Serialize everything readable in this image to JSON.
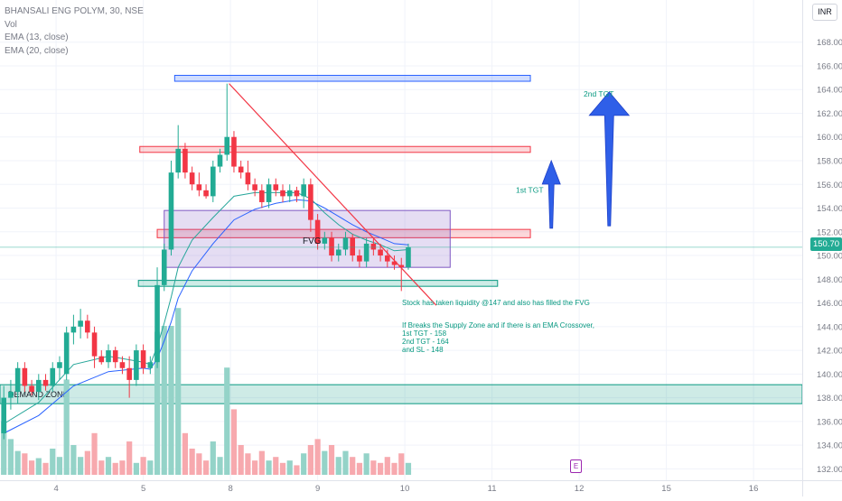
{
  "chart_data": {
    "type": "candlestick",
    "symbol_title": "BHANSALI ENG POLYM, 30, NSE",
    "indicators": [
      "Vol",
      "EMA (13, close)",
      "EMA (20, close)"
    ],
    "currency": "INR",
    "last_price": "150.70",
    "y_ticks": [
      132.0,
      134.0,
      136.0,
      138.0,
      140.0,
      142.0,
      144.0,
      146.0,
      148.0,
      150.0,
      152.0,
      154.0,
      156.0,
      158.0,
      160.0,
      162.0,
      164.0,
      166.0,
      168.0
    ],
    "ylim": [
      131.8,
      169.5
    ],
    "x_ticks": [
      {
        "label": "4",
        "bar": 7.5
      },
      {
        "label": "5",
        "bar": 20
      },
      {
        "label": "8",
        "bar": 32.5
      },
      {
        "label": "9",
        "bar": 45
      },
      {
        "label": "10",
        "bar": 57.5
      },
      {
        "label": "11",
        "bar": 70
      },
      {
        "label": "12",
        "bar": 82.5
      },
      {
        "label": "15",
        "bar": 95
      },
      {
        "label": "16",
        "bar": 107.5
      }
    ],
    "candles": [
      {
        "o": 135.0,
        "h": 139.0,
        "l": 134.5,
        "c": 138.0,
        "v": 0.45
      },
      {
        "o": 138.0,
        "h": 139.5,
        "l": 137.0,
        "c": 138.5,
        "v": 0.3
      },
      {
        "o": 138.5,
        "h": 141.0,
        "l": 137.5,
        "c": 140.5,
        "v": 0.2
      },
      {
        "o": 140.5,
        "h": 141.0,
        "l": 138.5,
        "c": 139.0,
        "v": 0.18
      },
      {
        "o": 139.0,
        "h": 139.5,
        "l": 138.2,
        "c": 138.5,
        "v": 0.12
      },
      {
        "o": 138.5,
        "h": 140.0,
        "l": 137.8,
        "c": 139.5,
        "v": 0.14
      },
      {
        "o": 139.5,
        "h": 140.0,
        "l": 138.6,
        "c": 139.0,
        "v": 0.1
      },
      {
        "o": 139.0,
        "h": 141.0,
        "l": 138.5,
        "c": 140.5,
        "v": 0.22
      },
      {
        "o": 140.5,
        "h": 141.5,
        "l": 139.5,
        "c": 141.0,
        "v": 0.15
      },
      {
        "o": 140.0,
        "h": 144.0,
        "l": 139.5,
        "c": 143.5,
        "v": 0.8
      },
      {
        "o": 143.5,
        "h": 145.0,
        "l": 142.5,
        "c": 144.0,
        "v": 0.25
      },
      {
        "o": 144.0,
        "h": 145.5,
        "l": 143.0,
        "c": 144.5,
        "v": 0.15
      },
      {
        "o": 144.5,
        "h": 145.0,
        "l": 143.0,
        "c": 143.5,
        "v": 0.2
      },
      {
        "o": 143.5,
        "h": 144.0,
        "l": 140.5,
        "c": 141.5,
        "v": 0.35
      },
      {
        "o": 141.5,
        "h": 142.0,
        "l": 140.8,
        "c": 141.0,
        "v": 0.12
      },
      {
        "o": 141.0,
        "h": 142.5,
        "l": 140.5,
        "c": 142.0,
        "v": 0.15
      },
      {
        "o": 142.0,
        "h": 142.3,
        "l": 140.5,
        "c": 141.0,
        "v": 0.1
      },
      {
        "o": 141.0,
        "h": 141.5,
        "l": 140.0,
        "c": 140.5,
        "v": 0.12
      },
      {
        "o": 140.5,
        "h": 141.5,
        "l": 138.0,
        "c": 139.5,
        "v": 0.28
      },
      {
        "o": 139.5,
        "h": 142.5,
        "l": 139.0,
        "c": 142.0,
        "v": 0.1
      },
      {
        "o": 142.0,
        "h": 142.5,
        "l": 140.0,
        "c": 140.5,
        "v": 0.15
      },
      {
        "o": 140.5,
        "h": 141.5,
        "l": 140.0,
        "c": 141.0,
        "v": 0.12
      },
      {
        "o": 141.0,
        "h": 149.0,
        "l": 140.5,
        "c": 147.5,
        "v": 1.2
      },
      {
        "o": 147.5,
        "h": 151.0,
        "l": 147.0,
        "c": 150.5,
        "v": 1.25
      },
      {
        "o": 150.5,
        "h": 158.0,
        "l": 150.0,
        "c": 157.0,
        "v": 1.25
      },
      {
        "o": 157.0,
        "h": 161.0,
        "l": 156.5,
        "c": 159.0,
        "v": 1.4
      },
      {
        "o": 159.0,
        "h": 159.5,
        "l": 156.5,
        "c": 157.0,
        "v": 0.35
      },
      {
        "o": 157.0,
        "h": 157.5,
        "l": 155.5,
        "c": 156.0,
        "v": 0.22
      },
      {
        "o": 156.0,
        "h": 157.0,
        "l": 155.0,
        "c": 155.5,
        "v": 0.18
      },
      {
        "o": 155.5,
        "h": 156.0,
        "l": 154.8,
        "c": 155.0,
        "v": 0.12
      },
      {
        "o": 155.0,
        "h": 158.0,
        "l": 154.5,
        "c": 157.5,
        "v": 0.28
      },
      {
        "o": 157.5,
        "h": 159.0,
        "l": 157.0,
        "c": 158.5,
        "v": 0.15
      },
      {
        "o": 158.5,
        "h": 164.5,
        "l": 158.0,
        "c": 160.0,
        "v": 0.9
      },
      {
        "o": 160.0,
        "h": 160.5,
        "l": 157.0,
        "c": 157.5,
        "v": 0.55
      },
      {
        "o": 157.5,
        "h": 158.0,
        "l": 156.5,
        "c": 157.0,
        "v": 0.25
      },
      {
        "o": 157.0,
        "h": 158.0,
        "l": 155.5,
        "c": 156.0,
        "v": 0.18
      },
      {
        "o": 156.0,
        "h": 156.5,
        "l": 155.0,
        "c": 155.5,
        "v": 0.12
      },
      {
        "o": 155.5,
        "h": 156.0,
        "l": 154.0,
        "c": 154.5,
        "v": 0.2
      },
      {
        "o": 154.5,
        "h": 156.5,
        "l": 154.0,
        "c": 156.0,
        "v": 0.12
      },
      {
        "o": 156.0,
        "h": 156.5,
        "l": 155.0,
        "c": 155.5,
        "v": 0.15
      },
      {
        "o": 155.5,
        "h": 156.0,
        "l": 154.5,
        "c": 155.0,
        "v": 0.1
      },
      {
        "o": 155.0,
        "h": 156.0,
        "l": 154.5,
        "c": 155.5,
        "v": 0.12
      },
      {
        "o": 155.5,
        "h": 155.8,
        "l": 154.5,
        "c": 155.0,
        "v": 0.08
      },
      {
        "o": 155.0,
        "h": 156.5,
        "l": 154.0,
        "c": 156.0,
        "v": 0.18
      },
      {
        "o": 156.0,
        "h": 156.5,
        "l": 152.0,
        "c": 153.0,
        "v": 0.25
      },
      {
        "o": 153.0,
        "h": 153.5,
        "l": 150.5,
        "c": 151.0,
        "v": 0.3
      },
      {
        "o": 151.0,
        "h": 152.0,
        "l": 150.5,
        "c": 151.5,
        "v": 0.2
      },
      {
        "o": 151.5,
        "h": 152.0,
        "l": 149.5,
        "c": 150.0,
        "v": 0.25
      },
      {
        "o": 150.0,
        "h": 151.0,
        "l": 149.5,
        "c": 150.5,
        "v": 0.15
      },
      {
        "o": 150.5,
        "h": 152.0,
        "l": 150.0,
        "c": 151.5,
        "v": 0.2
      },
      {
        "o": 151.5,
        "h": 151.8,
        "l": 149.5,
        "c": 150.0,
        "v": 0.15
      },
      {
        "o": 150.0,
        "h": 150.5,
        "l": 149.0,
        "c": 149.5,
        "v": 0.1
      },
      {
        "o": 149.5,
        "h": 151.5,
        "l": 149.0,
        "c": 151.0,
        "v": 0.18
      },
      {
        "o": 151.0,
        "h": 151.5,
        "l": 150.0,
        "c": 150.5,
        "v": 0.12
      },
      {
        "o": 150.5,
        "h": 151.0,
        "l": 149.5,
        "c": 150.0,
        "v": 0.1
      },
      {
        "o": 150.0,
        "h": 150.5,
        "l": 149.0,
        "c": 149.5,
        "v": 0.15
      },
      {
        "o": 149.5,
        "h": 150.0,
        "l": 148.8,
        "c": 149.2,
        "v": 0.1
      },
      {
        "o": 149.2,
        "h": 149.8,
        "l": 147.0,
        "c": 149.0,
        "v": 0.18
      },
      {
        "o": 149.0,
        "h": 151.0,
        "l": 148.8,
        "c": 150.7,
        "v": 0.1
      }
    ],
    "ema13": [
      [
        0,
        135.8
      ],
      [
        5,
        137.6
      ],
      [
        10,
        140.8
      ],
      [
        15,
        141.5
      ],
      [
        20,
        141.0
      ],
      [
        21,
        140.8
      ],
      [
        22,
        142.3
      ],
      [
        23,
        144.3
      ],
      [
        24,
        146.5
      ],
      [
        25,
        149.0
      ],
      [
        27,
        151.3
      ],
      [
        30,
        153.2
      ],
      [
        33,
        155.0
      ],
      [
        36,
        155.3
      ],
      [
        39,
        155.3
      ],
      [
        42,
        155.3
      ],
      [
        44,
        154.8
      ],
      [
        46,
        153.6
      ],
      [
        48,
        152.6
      ],
      [
        50,
        151.8
      ],
      [
        52,
        151.3
      ],
      [
        54,
        150.9
      ],
      [
        56,
        150.4
      ],
      [
        58,
        150.5
      ]
    ],
    "ema20": [
      [
        0,
        135.0
      ],
      [
        5,
        136.5
      ],
      [
        10,
        139.0
      ],
      [
        15,
        140.2
      ],
      [
        20,
        140.5
      ],
      [
        21,
        140.4
      ],
      [
        22,
        141.3
      ],
      [
        23,
        142.8
      ],
      [
        24,
        144.4
      ],
      [
        25,
        146.4
      ],
      [
        27,
        148.7
      ],
      [
        30,
        151.0
      ],
      [
        33,
        153.0
      ],
      [
        36,
        153.9
      ],
      [
        39,
        154.4
      ],
      [
        42,
        154.7
      ],
      [
        44,
        154.6
      ],
      [
        46,
        154.0
      ],
      [
        48,
        153.3
      ],
      [
        50,
        152.6
      ],
      [
        52,
        152.0
      ],
      [
        54,
        151.5
      ],
      [
        56,
        151.0
      ],
      [
        58,
        150.9
      ]
    ],
    "zones": [
      {
        "label": "",
        "kind": "blue",
        "x0": 24.5,
        "x1": 75.5,
        "y0": 164.7,
        "y1": 165.2
      },
      {
        "label": "",
        "kind": "red",
        "x0": 19.5,
        "x1": 75.5,
        "y0": 158.7,
        "y1": 159.2
      },
      {
        "label": "",
        "kind": "red",
        "x0": 22,
        "x1": 75.5,
        "y0": 151.5,
        "y1": 152.2
      },
      {
        "label": "",
        "kind": "purple",
        "x0": 23,
        "x1": 64,
        "y0": 149.0,
        "y1": 153.8
      },
      {
        "label": "",
        "kind": "green",
        "x0": 19.3,
        "x1": 70.8,
        "y0": 147.4,
        "y1": 147.9
      },
      {
        "label": "DEMAND ZONE",
        "kind": "green",
        "x0": -0.6,
        "x1": 119,
        "y0": 137.5,
        "y1": 139.1
      }
    ],
    "trendline": {
      "from": [
        32.3,
        164.5
      ],
      "to": [
        62,
        145.8
      ]
    },
    "hline_last": 150.7,
    "annotations": {
      "fvg": "FVG",
      "tgt1": "1st TGT",
      "tgt2": "2nd TGT",
      "note1": "Stock has taken liquidity @147 and also has filled the FVG",
      "note2": [
        "If Breaks the Supply Zone and if there is an EMA Crossover,",
        "1st TGT - 158",
        "2nd TGT - 164",
        "and SL - 148"
      ]
    },
    "arrows": [
      {
        "name": "1st-tgt-arrow",
        "bar": 78.5,
        "y_from": 152.3,
        "y_to": 158.0
      },
      {
        "name": "2nd-tgt-arrow",
        "bar": 86.8,
        "y_from": 152.5,
        "y_to": 163.8
      }
    ],
    "earnings_badge": "E",
    "colors": {
      "up": "#22ab94",
      "down": "#f23645",
      "vol_up": "#94d3c8",
      "vol_down": "#f7a9ae",
      "ema13": "#26a69a",
      "ema20": "#2962ff",
      "trend": "#f23645",
      "arrow": "#2f5fe8",
      "note": "#089981",
      "fvg_text": "#131722",
      "tgt_text": "#089981"
    }
  }
}
